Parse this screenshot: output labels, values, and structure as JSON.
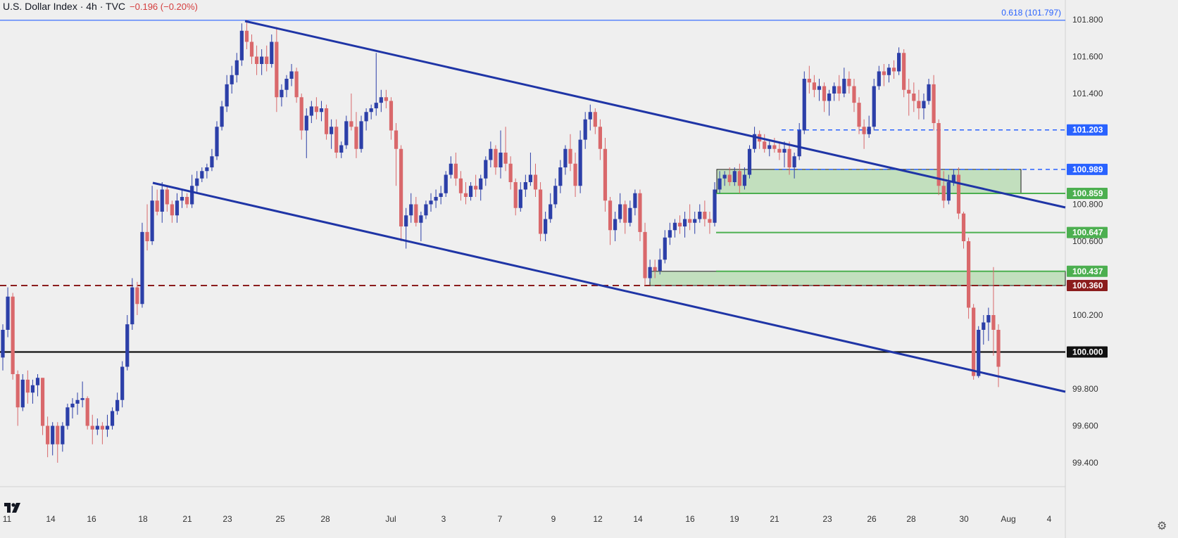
{
  "header": {
    "title": "U.S. Dollar Index · 4h · TVC",
    "change": "−0.196 (−0.20%)"
  },
  "fib_label": "0.618 (101.797)",
  "colors": {
    "up": "#2c3fa8",
    "down": "#d9686b",
    "trend": "#1f35a6",
    "zone_fill": "#b6dbb1",
    "zone_line": "#1c1c1c",
    "green_line": "#4caf50",
    "red_dash": "#8b1d1d",
    "blue_dash": "#2962ff",
    "fib_line": "#2962ff"
  },
  "chart_data": {
    "type": "candlestick",
    "title": "U.S. Dollar Index · 4h · TVC",
    "ylim": [
      99.3,
      101.9
    ],
    "y_ticks": [
      101.8,
      101.6,
      101.4,
      100.8,
      100.6,
      100.2,
      99.8,
      99.6,
      99.4
    ],
    "y_tick_labels": [
      "101.800",
      "101.600",
      "101.400",
      "100.800",
      "100.600",
      "100.200",
      "99.800",
      "99.600",
      "99.400"
    ],
    "x_tick_labels": [
      "11",
      "14",
      "16",
      "18",
      "21",
      "23",
      "25",
      "28",
      "Jul",
      "3",
      "7",
      "9",
      "12",
      "14",
      "16",
      "19",
      "21",
      "23",
      "26",
      "28",
      "30",
      "Aug",
      "4"
    ],
    "price_labels": [
      {
        "text": "101.203",
        "value": 101.203,
        "style": "blue"
      },
      {
        "text": "100.989",
        "value": 100.989,
        "style": "blue"
      },
      {
        "text": "100.859",
        "value": 100.859,
        "style": "green"
      },
      {
        "text": "100.647",
        "value": 100.647,
        "style": "green"
      },
      {
        "text": "100.437",
        "value": 100.437,
        "style": "green"
      },
      {
        "text": "100.360",
        "value": 100.36,
        "style": "red"
      },
      {
        "text": "100.000",
        "value": 100.0,
        "style": "black"
      }
    ],
    "levels": [
      {
        "value": 101.797,
        "style": "fib"
      },
      {
        "value": 101.203,
        "style": "blue-dash"
      },
      {
        "value": 100.989,
        "style": "blue-dash"
      },
      {
        "value": 100.859,
        "style": "green"
      },
      {
        "value": 100.647,
        "style": "green"
      },
      {
        "value": 100.437,
        "style": "green"
      },
      {
        "value": 100.36,
        "style": "red-dash"
      },
      {
        "value": 100.0,
        "style": "black"
      }
    ],
    "zones": [
      {
        "from": 100.859,
        "to": 100.989
      },
      {
        "from": 100.36,
        "to": 100.437
      }
    ],
    "trendlines": [
      {
        "from": {
          "x": "24 Jun",
          "y": 101.8
        },
        "to": {
          "x": "Aug 4",
          "y": 100.76
        }
      },
      {
        "from": {
          "x": "19 Jun",
          "y": 100.89
        },
        "to": {
          "x": "Aug 4",
          "y": 99.77
        }
      }
    ],
    "candles": [
      [
        99.97,
        100.15,
        99.9,
        100.12
      ],
      [
        100.12,
        100.35,
        100.08,
        100.3
      ],
      [
        100.3,
        100.32,
        99.85,
        99.88
      ],
      [
        99.88,
        99.9,
        99.6,
        99.7
      ],
      [
        99.7,
        99.88,
        99.68,
        99.85
      ],
      [
        99.85,
        99.9,
        99.72,
        99.78
      ],
      [
        99.78,
        99.85,
        99.72,
        99.82
      ],
      [
        99.82,
        99.88,
        99.76,
        99.86
      ],
      [
        99.86,
        99.86,
        99.55,
        99.6
      ],
      [
        99.6,
        99.65,
        99.43,
        99.5
      ],
      [
        99.5,
        99.62,
        99.44,
        99.6
      ],
      [
        99.6,
        99.62,
        99.4,
        99.5
      ],
      [
        99.5,
        99.62,
        99.46,
        99.6
      ],
      [
        99.6,
        99.72,
        99.58,
        99.7
      ],
      [
        99.7,
        99.75,
        99.64,
        99.72
      ],
      [
        99.72,
        99.78,
        99.66,
        99.74
      ],
      [
        99.74,
        99.84,
        99.7,
        99.75
      ],
      [
        99.75,
        99.76,
        99.58,
        99.6
      ],
      [
        99.6,
        99.66,
        99.5,
        99.58
      ],
      [
        99.58,
        99.64,
        99.55,
        99.6
      ],
      [
        99.6,
        99.62,
        99.5,
        99.58
      ],
      [
        99.58,
        99.66,
        99.54,
        99.6
      ],
      [
        99.6,
        99.7,
        99.58,
        99.68
      ],
      [
        99.68,
        99.78,
        99.66,
        99.74
      ],
      [
        99.74,
        99.95,
        99.7,
        99.92
      ],
      [
        99.92,
        100.2,
        99.9,
        100.15
      ],
      [
        100.15,
        100.4,
        100.12,
        100.35
      ],
      [
        100.35,
        100.38,
        100.2,
        100.26
      ],
      [
        100.26,
        100.7,
        100.24,
        100.65
      ],
      [
        100.65,
        100.8,
        100.55,
        100.6
      ],
      [
        100.6,
        100.9,
        100.58,
        100.82
      ],
      [
        100.82,
        100.88,
        100.74,
        100.76
      ],
      [
        100.76,
        100.92,
        100.7,
        100.88
      ],
      [
        100.88,
        100.9,
        100.76,
        100.8
      ],
      [
        100.8,
        100.82,
        100.7,
        100.74
      ],
      [
        100.74,
        100.86,
        100.7,
        100.82
      ],
      [
        100.82,
        100.88,
        100.78,
        100.84
      ],
      [
        100.84,
        100.86,
        100.78,
        100.8
      ],
      [
        100.8,
        100.96,
        100.78,
        100.9
      ],
      [
        100.9,
        100.98,
        100.86,
        100.94
      ],
      [
        100.94,
        101.0,
        100.92,
        100.98
      ],
      [
        100.98,
        101.02,
        100.94,
        101.0
      ],
      [
        101.0,
        101.1,
        100.98,
        101.06
      ],
      [
        101.06,
        101.25,
        101.04,
        101.22
      ],
      [
        101.22,
        101.36,
        101.2,
        101.33
      ],
      [
        101.33,
        101.5,
        101.3,
        101.45
      ],
      [
        101.45,
        101.55,
        101.4,
        101.5
      ],
      [
        101.5,
        101.62,
        101.46,
        101.58
      ],
      [
        101.58,
        101.78,
        101.55,
        101.74
      ],
      [
        101.74,
        101.8,
        101.64,
        101.68
      ],
      [
        101.68,
        101.72,
        101.56,
        101.6
      ],
      [
        101.6,
        101.66,
        101.5,
        101.56
      ],
      [
        101.56,
        101.64,
        101.5,
        101.6
      ],
      [
        101.6,
        101.66,
        101.52,
        101.56
      ],
      [
        101.56,
        101.72,
        101.54,
        101.68
      ],
      [
        101.68,
        101.76,
        101.3,
        101.38
      ],
      [
        101.38,
        101.45,
        101.33,
        101.42
      ],
      [
        101.42,
        101.5,
        101.38,
        101.48
      ],
      [
        101.48,
        101.56,
        101.44,
        101.52
      ],
      [
        101.52,
        101.54,
        101.35,
        101.38
      ],
      [
        101.38,
        101.4,
        101.15,
        101.2
      ],
      [
        101.2,
        101.32,
        101.05,
        101.28
      ],
      [
        101.28,
        101.36,
        101.24,
        101.33
      ],
      [
        101.33,
        101.38,
        101.26,
        101.3
      ],
      [
        101.3,
        101.36,
        101.25,
        101.32
      ],
      [
        101.32,
        101.34,
        101.15,
        101.18
      ],
      [
        101.18,
        101.26,
        101.1,
        101.22
      ],
      [
        101.22,
        101.26,
        101.05,
        101.08
      ],
      [
        101.08,
        101.14,
        101.05,
        101.12
      ],
      [
        101.12,
        101.28,
        101.1,
        101.25
      ],
      [
        101.25,
        101.4,
        101.2,
        101.22
      ],
      [
        101.22,
        101.3,
        101.05,
        101.1
      ],
      [
        101.1,
        101.28,
        101.08,
        101.25
      ],
      [
        101.25,
        101.32,
        101.2,
        101.3
      ],
      [
        101.3,
        101.34,
        101.26,
        101.32
      ],
      [
        101.32,
        101.62,
        101.28,
        101.35
      ],
      [
        101.35,
        101.42,
        101.3,
        101.38
      ],
      [
        101.38,
        101.42,
        101.32,
        101.36
      ],
      [
        101.36,
        101.38,
        101.15,
        101.2
      ],
      [
        101.2,
        101.24,
        100.9,
        101.1
      ],
      [
        101.1,
        101.12,
        100.6,
        100.68
      ],
      [
        100.68,
        100.78,
        100.56,
        100.74
      ],
      [
        100.74,
        100.86,
        100.7,
        100.8
      ],
      [
        100.8,
        100.84,
        100.68,
        100.7
      ],
      [
        100.7,
        100.76,
        100.6,
        100.74
      ],
      [
        100.74,
        100.82,
        100.72,
        100.8
      ],
      [
        100.8,
        100.86,
        100.76,
        100.82
      ],
      [
        100.82,
        100.88,
        100.78,
        100.84
      ],
      [
        100.84,
        100.9,
        100.8,
        100.86
      ],
      [
        100.86,
        100.98,
        100.84,
        100.96
      ],
      [
        100.96,
        101.06,
        100.94,
        101.02
      ],
      [
        101.02,
        101.08,
        100.9,
        100.94
      ],
      [
        100.94,
        100.98,
        100.82,
        100.86
      ],
      [
        100.86,
        100.92,
        100.8,
        100.84
      ],
      [
        100.84,
        100.92,
        100.82,
        100.9
      ],
      [
        100.9,
        100.96,
        100.84,
        100.88
      ],
      [
        100.88,
        100.96,
        100.82,
        100.94
      ],
      [
        100.94,
        101.06,
        100.9,
        101.04
      ],
      [
        101.04,
        101.14,
        101.0,
        101.1
      ],
      [
        101.1,
        101.12,
        100.96,
        101.0
      ],
      [
        101.0,
        101.2,
        100.94,
        101.08
      ],
      [
        101.08,
        101.22,
        100.98,
        101.02
      ],
      [
        101.02,
        101.06,
        100.88,
        100.92
      ],
      [
        100.92,
        100.94,
        100.74,
        100.78
      ],
      [
        100.78,
        100.92,
        100.76,
        100.88
      ],
      [
        100.88,
        100.96,
        100.84,
        100.92
      ],
      [
        100.92,
        101.08,
        100.9,
        100.96
      ],
      [
        100.96,
        101.02,
        100.84,
        100.88
      ],
      [
        100.88,
        100.92,
        100.6,
        100.64
      ],
      [
        100.64,
        100.76,
        100.6,
        100.72
      ],
      [
        100.72,
        100.86,
        100.7,
        100.8
      ],
      [
        100.8,
        100.94,
        100.78,
        100.9
      ],
      [
        100.9,
        101.04,
        100.86,
        101.0
      ],
      [
        101.0,
        101.12,
        100.96,
        101.1
      ],
      [
        101.1,
        101.18,
        100.98,
        101.02
      ],
      [
        101.02,
        101.08,
        100.84,
        100.9
      ],
      [
        100.9,
        101.2,
        100.86,
        101.15
      ],
      [
        101.15,
        101.3,
        101.1,
        101.26
      ],
      [
        101.26,
        101.34,
        101.2,
        101.3
      ],
      [
        101.3,
        101.32,
        101.18,
        101.22
      ],
      [
        101.22,
        101.26,
        101.04,
        101.1
      ],
      [
        101.1,
        101.16,
        100.76,
        100.82
      ],
      [
        100.82,
        100.84,
        100.58,
        100.66
      ],
      [
        100.66,
        100.76,
        100.6,
        100.72
      ],
      [
        100.72,
        100.86,
        100.7,
        100.8
      ],
      [
        100.8,
        100.82,
        100.64,
        100.7
      ],
      [
        100.7,
        100.82,
        100.68,
        100.78
      ],
      [
        100.78,
        100.88,
        100.74,
        100.86
      ],
      [
        100.86,
        100.88,
        100.6,
        100.65
      ],
      [
        100.65,
        100.7,
        100.36,
        100.4
      ],
      [
        100.4,
        100.5,
        100.38,
        100.46
      ],
      [
        100.46,
        100.5,
        100.4,
        100.44
      ],
      [
        100.44,
        100.56,
        100.42,
        100.5
      ],
      [
        100.5,
        100.66,
        100.48,
        100.62
      ],
      [
        100.62,
        100.7,
        100.58,
        100.66
      ],
      [
        100.66,
        100.72,
        100.62,
        100.7
      ],
      [
        100.7,
        100.74,
        100.64,
        100.68
      ],
      [
        100.68,
        100.76,
        100.62,
        100.72
      ],
      [
        100.72,
        100.8,
        100.66,
        100.7
      ],
      [
        100.7,
        100.76,
        100.64,
        100.72
      ],
      [
        100.72,
        100.8,
        100.7,
        100.76
      ],
      [
        100.76,
        100.82,
        100.68,
        100.72
      ],
      [
        100.72,
        100.76,
        100.64,
        100.7
      ],
      [
        100.7,
        100.92,
        100.68,
        100.88
      ],
      [
        100.88,
        100.98,
        100.86,
        100.94
      ],
      [
        100.94,
        100.98,
        100.9,
        100.96
      ],
      [
        100.96,
        101.0,
        100.9,
        100.92
      ],
      [
        100.92,
        101.0,
        100.9,
        100.98
      ],
      [
        100.98,
        101.02,
        100.86,
        100.9
      ],
      [
        100.9,
        101.0,
        100.88,
        100.96
      ],
      [
        100.96,
        101.12,
        100.94,
        101.1
      ],
      [
        101.1,
        101.22,
        101.08,
        101.18
      ],
      [
        101.18,
        101.2,
        101.1,
        101.14
      ],
      [
        101.14,
        101.18,
        101.08,
        101.1
      ],
      [
        101.1,
        101.14,
        101.06,
        101.12
      ],
      [
        101.12,
        101.16,
        101.08,
        101.1
      ],
      [
        101.1,
        101.14,
        101.04,
        101.08
      ],
      [
        101.08,
        101.14,
        101.0,
        101.1
      ],
      [
        101.1,
        101.14,
        100.96,
        101.0
      ],
      [
        101.0,
        101.08,
        100.94,
        101.06
      ],
      [
        101.06,
        101.24,
        101.04,
        101.2
      ],
      [
        101.2,
        101.52,
        101.18,
        101.48
      ],
      [
        101.48,
        101.55,
        101.4,
        101.46
      ],
      [
        101.46,
        101.5,
        101.38,
        101.42
      ],
      [
        101.42,
        101.48,
        101.36,
        101.44
      ],
      [
        101.44,
        101.46,
        101.3,
        101.36
      ],
      [
        101.36,
        101.42,
        101.28,
        101.4
      ],
      [
        101.4,
        101.46,
        101.36,
        101.44
      ],
      [
        101.44,
        101.5,
        101.36,
        101.4
      ],
      [
        101.4,
        101.54,
        101.38,
        101.48
      ],
      [
        101.48,
        101.52,
        101.4,
        101.44
      ],
      [
        101.44,
        101.48,
        101.3,
        101.35
      ],
      [
        101.35,
        101.38,
        101.18,
        101.22
      ],
      [
        101.22,
        101.26,
        101.1,
        101.18
      ],
      [
        101.18,
        101.28,
        101.16,
        101.22
      ],
      [
        101.22,
        101.48,
        101.2,
        101.44
      ],
      [
        101.44,
        101.55,
        101.42,
        101.52
      ],
      [
        101.52,
        101.56,
        101.44,
        101.5
      ],
      [
        101.5,
        101.56,
        101.46,
        101.54
      ],
      [
        101.54,
        101.58,
        101.48,
        101.52
      ],
      [
        101.52,
        101.65,
        101.5,
        101.62
      ],
      [
        101.62,
        101.64,
        101.38,
        101.42
      ],
      [
        101.42,
        101.48,
        101.28,
        101.4
      ],
      [
        101.4,
        101.46,
        101.3,
        101.36
      ],
      [
        101.36,
        101.42,
        101.26,
        101.32
      ],
      [
        101.32,
        101.4,
        101.26,
        101.36
      ],
      [
        101.36,
        101.48,
        101.34,
        101.45
      ],
      [
        101.45,
        101.5,
        101.2,
        101.24
      ],
      [
        101.24,
        101.26,
        100.85,
        100.9
      ],
      [
        100.9,
        100.98,
        100.78,
        100.82
      ],
      [
        100.82,
        100.96,
        100.8,
        100.92
      ],
      [
        100.92,
        100.99,
        100.9,
        100.96
      ],
      [
        100.96,
        101.0,
        100.72,
        100.75
      ],
      [
        100.75,
        100.76,
        100.56,
        100.6
      ],
      [
        100.6,
        100.62,
        100.18,
        100.24
      ],
      [
        100.24,
        100.26,
        99.85,
        99.87
      ],
      [
        99.87,
        100.14,
        99.86,
        100.12
      ],
      [
        100.12,
        100.2,
        100.04,
        100.16
      ],
      [
        100.16,
        100.24,
        100.06,
        100.2
      ],
      [
        100.2,
        100.46,
        99.98,
        100.12
      ],
      [
        100.12,
        100.15,
        99.81,
        99.92
      ]
    ]
  }
}
